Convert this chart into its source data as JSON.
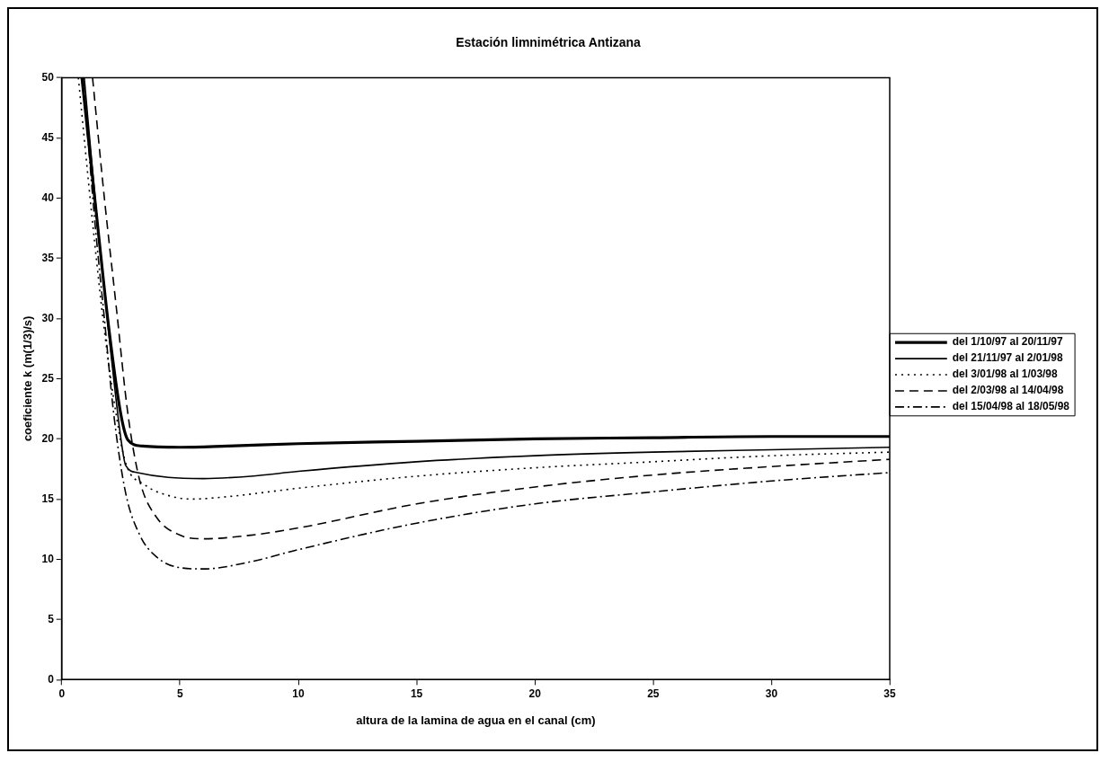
{
  "chart_data": {
    "type": "line",
    "title": "Estación limnimétrica Antizana",
    "xlabel": "altura de la lamina de agua en el canal (cm)",
    "ylabel": "coeficiente k (m(1/3)/s)",
    "xlim": [
      0,
      35
    ],
    "xticks": [
      0,
      5,
      10,
      15,
      20,
      25,
      30,
      35
    ],
    "ylim": [
      0,
      50
    ],
    "yticks": [
      0,
      5,
      10,
      15,
      20,
      25,
      30,
      35,
      40,
      45,
      50
    ],
    "grid": false,
    "legend": "right",
    "marker": "none",
    "series": [
      {
        "name": "del 1/10/97 al 20/11/97",
        "color": "#000000",
        "line_style": "solid",
        "x": [
          0.85,
          1.5,
          2.0,
          2.5,
          2.8,
          3.4,
          5,
          7,
          10,
          15,
          20,
          25,
          30,
          35
        ],
        "values": [
          50,
          38,
          29,
          22,
          19.9,
          19.4,
          19.3,
          19.4,
          19.6,
          19.8,
          20,
          20.1,
          20.2,
          20.2
        ]
      },
      {
        "name": "del 21/11/97 al 2/01/98",
        "color": "#000000",
        "line_style": "solid",
        "x": [
          0.95,
          1.5,
          2.0,
          2.5,
          2.7,
          3.2,
          4.5,
          6,
          8,
          10,
          15,
          20,
          25,
          30,
          35
        ],
        "values": [
          50,
          38,
          28.5,
          20,
          17.8,
          17.2,
          16.8,
          16.7,
          16.9,
          17.3,
          18.1,
          18.6,
          18.9,
          19.1,
          19.3
        ]
      },
      {
        "name": "del 3/01/98 al 1/03/98",
        "color": "#000000",
        "line_style": "dotted",
        "x": [
          0.7,
          1.3,
          1.8,
          2.3,
          2.7,
          3.5,
          4.5,
          5.5,
          7,
          10,
          15,
          20,
          25,
          30,
          35
        ],
        "values": [
          50,
          38,
          29,
          22,
          18,
          16.2,
          15.3,
          15,
          15.2,
          15.9,
          16.9,
          17.6,
          18.1,
          18.6,
          18.9
        ]
      },
      {
        "name": "del 2/03/98 al 14/04/98",
        "color": "#000000",
        "line_style": "dashed",
        "x": [
          1.3,
          1.8,
          2.3,
          2.8,
          3.3,
          4,
          5,
          6,
          8,
          10,
          15,
          20,
          25,
          30,
          35
        ],
        "values": [
          50,
          40,
          31,
          22,
          16.5,
          13.5,
          12,
          11.7,
          12,
          12.6,
          14.6,
          16,
          17,
          17.7,
          18.3
        ]
      },
      {
        "name": "del 15/04/98 al 18/05/98",
        "color": "#000000",
        "line_style": "dashdot",
        "x": [
          0.9,
          1.4,
          1.8,
          2.2,
          2.7,
          3.3,
          4,
          5,
          6,
          8,
          10,
          15,
          20,
          25,
          30,
          35
        ],
        "values": [
          50,
          38,
          30,
          22,
          15.5,
          12,
          10.2,
          9.3,
          9.2,
          9.8,
          10.8,
          13,
          14.6,
          15.6,
          16.5,
          17.2
        ]
      }
    ]
  }
}
